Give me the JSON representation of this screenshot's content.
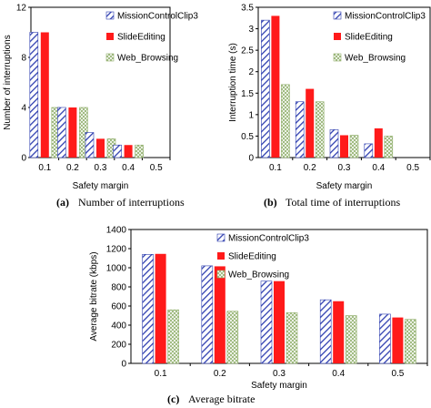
{
  "colors": {
    "series1_stroke": "#2f3fb0",
    "series2_fill": "#ff1a1a",
    "series3_stroke": "#8fae6a",
    "axis": "#000000"
  },
  "captions": [
    {
      "tag": "(a)",
      "text": "Number of interruptions"
    },
    {
      "tag": "(b)",
      "text": "Total time of interruptions"
    },
    {
      "tag": "(c)",
      "text": "Average bitrate"
    }
  ],
  "chart_data": [
    {
      "type": "bar",
      "categories": [
        "0.1",
        "0.2",
        "0.3",
        "0.4",
        "0.5"
      ],
      "xlabel": "Safety margin",
      "ylabel": "Number of interruptions",
      "ylim": [
        0,
        12
      ],
      "yticks": [
        "0",
        "4",
        "8",
        "12"
      ],
      "legend_position": "top-right",
      "series": [
        {
          "name": "MissionControlClip3",
          "values": [
            10,
            4,
            2,
            1,
            0
          ]
        },
        {
          "name": "SlideEditing",
          "values": [
            10,
            4,
            1.5,
            1,
            0
          ]
        },
        {
          "name": "Web_Browsing",
          "values": [
            4,
            4,
            1.5,
            1,
            0
          ]
        }
      ]
    },
    {
      "type": "bar",
      "categories": [
        "0.1",
        "0.2",
        "0.3",
        "0.4",
        "0.5"
      ],
      "xlabel": "Safety margin",
      "ylabel": "Interruption time (s)",
      "ylim": [
        0,
        3.5
      ],
      "yticks": [
        "0",
        "0.5",
        "1",
        "1.5",
        "2",
        "2.5",
        "3",
        "3.5"
      ],
      "legend_position": "top-right",
      "series": [
        {
          "name": "MissionControlClip3",
          "values": [
            3.2,
            1.3,
            0.65,
            0.32,
            0
          ]
        },
        {
          "name": "SlideEditing",
          "values": [
            3.3,
            1.6,
            0.52,
            0.68,
            0
          ]
        },
        {
          "name": "Web_Browsing",
          "values": [
            1.7,
            1.3,
            0.52,
            0.5,
            0
          ]
        }
      ]
    },
    {
      "type": "bar",
      "categories": [
        "0.1",
        "0.2",
        "0.3",
        "0.4",
        "0.5"
      ],
      "xlabel": "Safety margin",
      "ylabel": "Average bitrate (kbps)",
      "ylim": [
        0,
        1400
      ],
      "yticks": [
        "0",
        "200",
        "400",
        "600",
        "800",
        "1000",
        "1200",
        "1400"
      ],
      "legend_position": "top-right",
      "series": [
        {
          "name": "MissionControlClip3",
          "values": [
            1140,
            1020,
            860,
            665,
            515
          ]
        },
        {
          "name": "SlideEditing",
          "values": [
            1145,
            1015,
            860,
            650,
            480
          ]
        },
        {
          "name": "Web_Browsing",
          "values": [
            560,
            545,
            530,
            500,
            460
          ]
        }
      ]
    }
  ]
}
